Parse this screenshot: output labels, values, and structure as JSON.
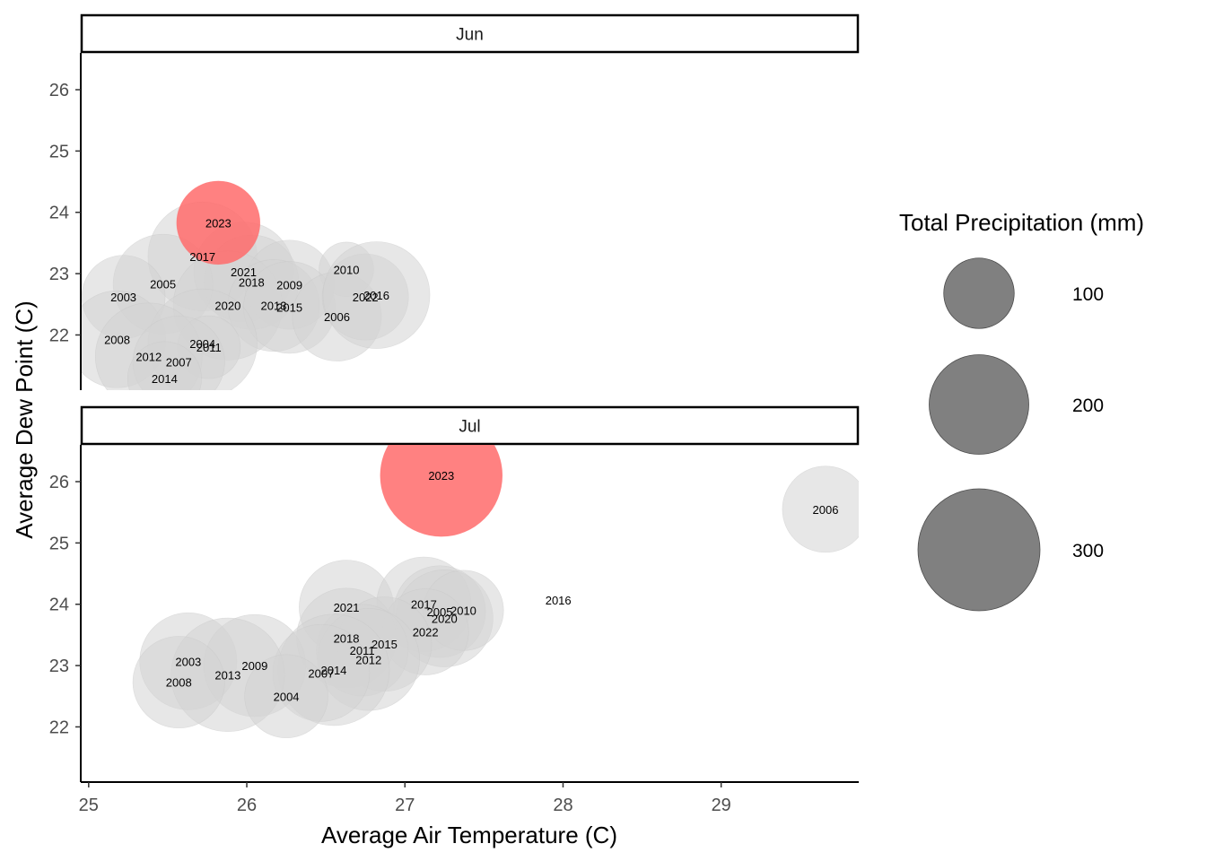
{
  "chart_data": {
    "type": "scatter",
    "xlabel": "Average Air Temperature (C)",
    "ylabel": "Average Dew Point (C)",
    "xlim": [
      24.95,
      29.87
    ],
    "ylim": [
      21.1,
      26.6
    ],
    "x_ticks": [
      25,
      26,
      27,
      28,
      29
    ],
    "y_ticks": [
      22,
      23,
      24,
      25,
      26
    ],
    "grid": false,
    "legend": {
      "title": "Total Precipitation (mm)",
      "placement": "right",
      "items": [
        {
          "label": "100",
          "value": 100
        },
        {
          "label": "200",
          "value": 200
        },
        {
          "label": "300",
          "value": 300
        }
      ]
    },
    "highlight_color": "#ff6b6b",
    "base_color": "#d3d3d3",
    "legend_color": "#808080",
    "panels": [
      {
        "name": "Jun",
        "points": [
          {
            "year": "2023",
            "x": 25.82,
            "y": 23.83,
            "precip": 140,
            "highlight": true
          },
          {
            "year": "2017",
            "x": 25.72,
            "y": 23.28,
            "precip": 240
          },
          {
            "year": "2021",
            "x": 25.98,
            "y": 23.03,
            "precip": 200
          },
          {
            "year": "2018",
            "x": 26.03,
            "y": 22.86,
            "precip": 180
          },
          {
            "year": "2009",
            "x": 26.27,
            "y": 22.82,
            "precip": 160
          },
          {
            "year": "2010",
            "x": 26.63,
            "y": 23.07,
            "precip": 60
          },
          {
            "year": "2005",
            "x": 25.47,
            "y": 22.83,
            "precip": 200
          },
          {
            "year": "2003",
            "x": 25.22,
            "y": 22.62,
            "precip": 140
          },
          {
            "year": "2020",
            "x": 25.88,
            "y": 22.48,
            "precip": 240
          },
          {
            "year": "2013",
            "x": 26.17,
            "y": 22.48,
            "precip": 170
          },
          {
            "year": "2015",
            "x": 26.27,
            "y": 22.45,
            "precip": 170
          },
          {
            "year": "2006",
            "x": 26.57,
            "y": 22.3,
            "precip": 160
          },
          {
            "year": "2022",
            "x": 26.75,
            "y": 22.62,
            "precip": 150
          },
          {
            "year": "2016",
            "x": 26.82,
            "y": 22.65,
            "precip": 230
          },
          {
            "year": "2008",
            "x": 25.18,
            "y": 21.93,
            "precip": 190
          },
          {
            "year": "2004",
            "x": 25.72,
            "y": 21.86,
            "precip": 240
          },
          {
            "year": "2011",
            "x": 25.76,
            "y": 21.8,
            "precip": 80
          },
          {
            "year": "2012",
            "x": 25.38,
            "y": 21.65,
            "precip": 230
          },
          {
            "year": "2007",
            "x": 25.57,
            "y": 21.56,
            "precip": 170
          },
          {
            "year": "2014",
            "x": 25.48,
            "y": 21.29,
            "precip": 110
          }
        ]
      },
      {
        "name": "Jul",
        "points": [
          {
            "year": "2023",
            "x": 27.23,
            "y": 26.1,
            "precip": 300,
            "highlight": true
          },
          {
            "year": "2006",
            "x": 29.66,
            "y": 25.55,
            "precip": 150
          },
          {
            "year": "2016",
            "x": 27.97,
            "y": 24.07,
            "precip": 0
          },
          {
            "year": "2021",
            "x": 26.63,
            "y": 23.95,
            "precip": 180
          },
          {
            "year": "2017",
            "x": 27.12,
            "y": 24.0,
            "precip": 180
          },
          {
            "year": "2005",
            "x": 27.22,
            "y": 23.88,
            "precip": 170
          },
          {
            "year": "2020",
            "x": 27.25,
            "y": 23.77,
            "precip": 190
          },
          {
            "year": "2010",
            "x": 27.37,
            "y": 23.9,
            "precip": 130
          },
          {
            "year": "2022",
            "x": 27.13,
            "y": 23.55,
            "precip": 150
          },
          {
            "year": "2018",
            "x": 26.63,
            "y": 23.45,
            "precip": 200
          },
          {
            "year": "2015",
            "x": 26.87,
            "y": 23.35,
            "precip": 180
          },
          {
            "year": "2011",
            "x": 26.73,
            "y": 23.25,
            "precip": 170
          },
          {
            "year": "2012",
            "x": 26.77,
            "y": 23.1,
            "precip": 210
          },
          {
            "year": "2003",
            "x": 25.63,
            "y": 23.07,
            "precip": 190
          },
          {
            "year": "2009",
            "x": 26.05,
            "y": 23.0,
            "precip": 210
          },
          {
            "year": "2014",
            "x": 26.55,
            "y": 22.93,
            "precip": 250
          },
          {
            "year": "2007",
            "x": 26.47,
            "y": 22.88,
            "precip": 190
          },
          {
            "year": "2013",
            "x": 25.88,
            "y": 22.85,
            "precip": 260
          },
          {
            "year": "2008",
            "x": 25.57,
            "y": 22.73,
            "precip": 170
          },
          {
            "year": "2004",
            "x": 26.25,
            "y": 22.5,
            "precip": 140
          }
        ]
      }
    ]
  }
}
